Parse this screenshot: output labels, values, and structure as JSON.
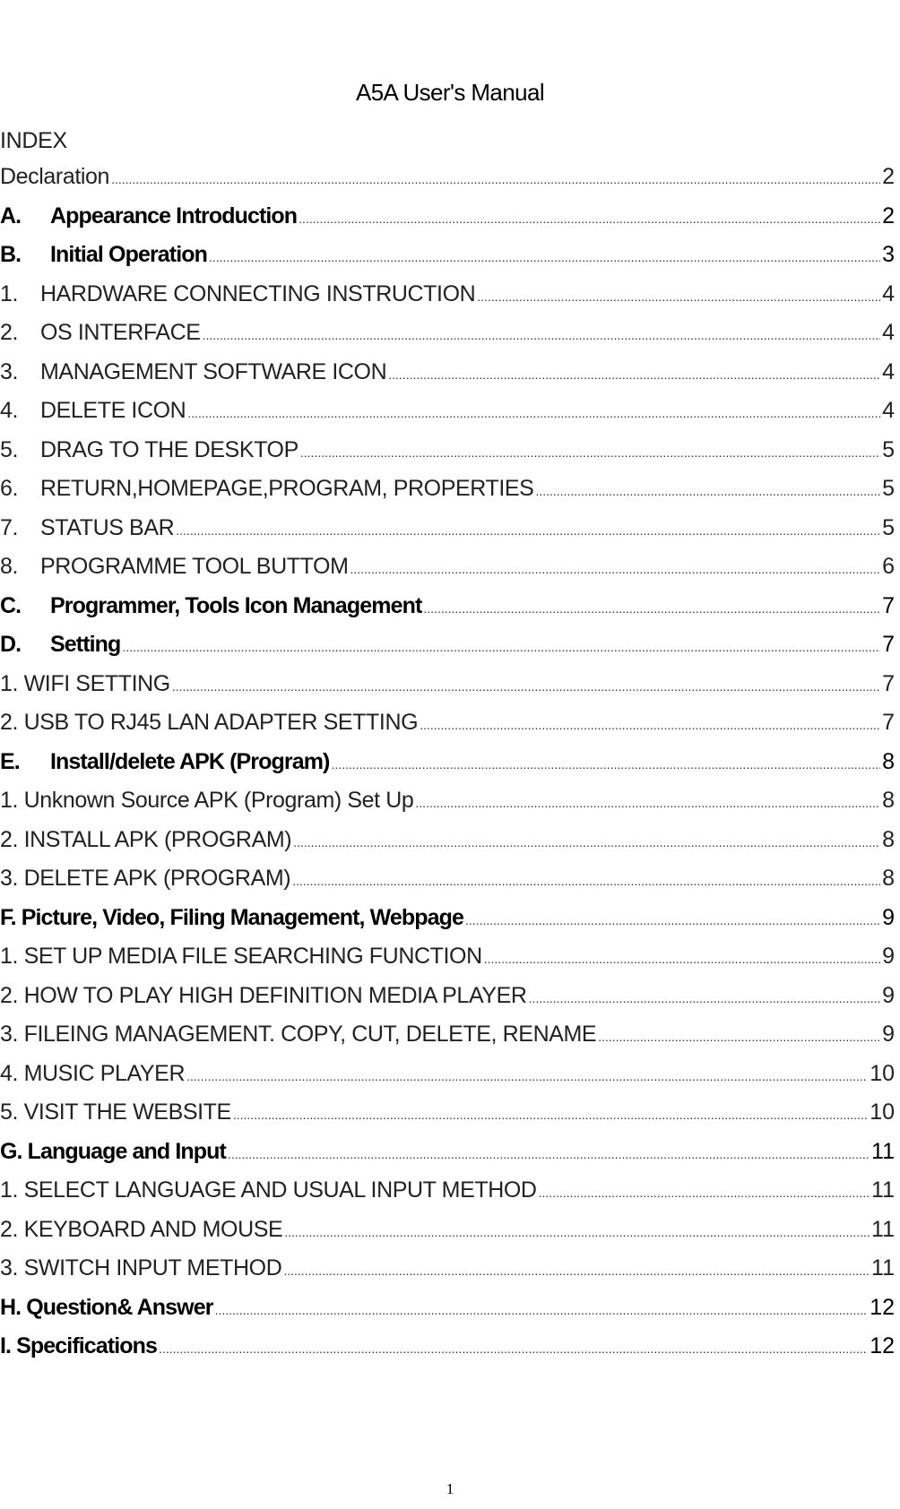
{
  "title": "A5A User's Manual",
  "index_heading": "INDEX",
  "entries": [
    {
      "num": "",
      "text": "Declaration",
      "page": "2",
      "bold": false
    },
    {
      "num": "A.",
      "text": "Appearance Introduction",
      "page": "2",
      "bold": true
    },
    {
      "num": "B.",
      "text": "Initial Operation",
      "page": "3",
      "bold": true
    },
    {
      "num": "1.",
      "text": "HARDWARE CONNECTING INSTRUCTION",
      "page": "4",
      "bold": false
    },
    {
      "num": "2.",
      "text": "OS INTERFACE",
      "page": "4",
      "bold": false
    },
    {
      "num": "3.",
      "text": "MANAGEMENT SOFTWARE ICON",
      "page": "4",
      "bold": false
    },
    {
      "num": "4.",
      "text": "DELETE ICON",
      "page": "4",
      "bold": false
    },
    {
      "num": "5.",
      "text": "DRAG TO THE DESKTOP",
      "page": "5",
      "bold": false
    },
    {
      "num": "6.",
      "text": "RETURN,HOMEPAGE,PROGRAM, PROPERTIES",
      "page": "5",
      "bold": false
    },
    {
      "num": "7.",
      "text": "STATUS BAR",
      "page": "5",
      "bold": false
    },
    {
      "num": "8.",
      "text": "PROGRAMME TOOL BUTTOM",
      "page": "6",
      "bold": false
    },
    {
      "num": "C.",
      "text": "Programmer, Tools Icon Management",
      "page": "7",
      "bold": true
    },
    {
      "num": "D.",
      "text": "Setting",
      "page": "7",
      "bold": true
    },
    {
      "num": "",
      "text": "1. WIFI SETTING",
      "page": "7",
      "bold": false
    },
    {
      "num": "",
      "text": "2. USB TO RJ45 LAN ADAPTER SETTING",
      "page": "7",
      "bold": false
    },
    {
      "num": "E.",
      "text": "Install/delete APK (Program)",
      "page": "8",
      "bold": true
    },
    {
      "num": "",
      "text": "1. Unknown Source APK (Program) Set Up",
      "page": "8",
      "bold": false
    },
    {
      "num": "",
      "text": "2. INSTALL APK (PROGRAM)",
      "page": "8",
      "bold": false
    },
    {
      "num": "",
      "text": "3. DELETE APK (PROGRAM)",
      "page": "8",
      "bold": false
    },
    {
      "num": "",
      "text": "F. Picture, Video, Filing Management, Webpage",
      "page": "9",
      "bold": true
    },
    {
      "num": "",
      "text": "1. SET UP MEDIA FILE SEARCHING FUNCTION",
      "page": "9",
      "bold": false
    },
    {
      "num": "",
      "text": "2. HOW TO PLAY HIGH DEFINITION MEDIA PLAYER",
      "page": "9",
      "bold": false
    },
    {
      "num": "",
      "text": "3. FILEING MANAGEMENT. COPY, CUT, DELETE, RENAME",
      "page": "9",
      "bold": false
    },
    {
      "num": "",
      "text": "4. MUSIC PLAYER",
      "page": "10",
      "bold": false
    },
    {
      "num": "",
      "text": "5. VISIT THE WEBSITE",
      "page": "10",
      "bold": false
    },
    {
      "num": "",
      "text": "G. Language and Input",
      "page": "11",
      "bold": true
    },
    {
      "num": "",
      "text": "1. SELECT LANGUAGE AND USUAL INPUT METHOD",
      "page": "11",
      "bold": false
    },
    {
      "num": "",
      "text": "2. KEYBOARD AND MOUSE",
      "page": "11",
      "bold": false
    },
    {
      "num": "",
      "text": "3. SWITCH INPUT METHOD",
      "page": "11",
      "bold": false
    },
    {
      "num": "",
      "text": "H. Question& Answer",
      "page": "12",
      "bold": true
    },
    {
      "num": "",
      "text": "I. Specifications",
      "page": "12",
      "bold": true
    }
  ],
  "page_number": "1"
}
